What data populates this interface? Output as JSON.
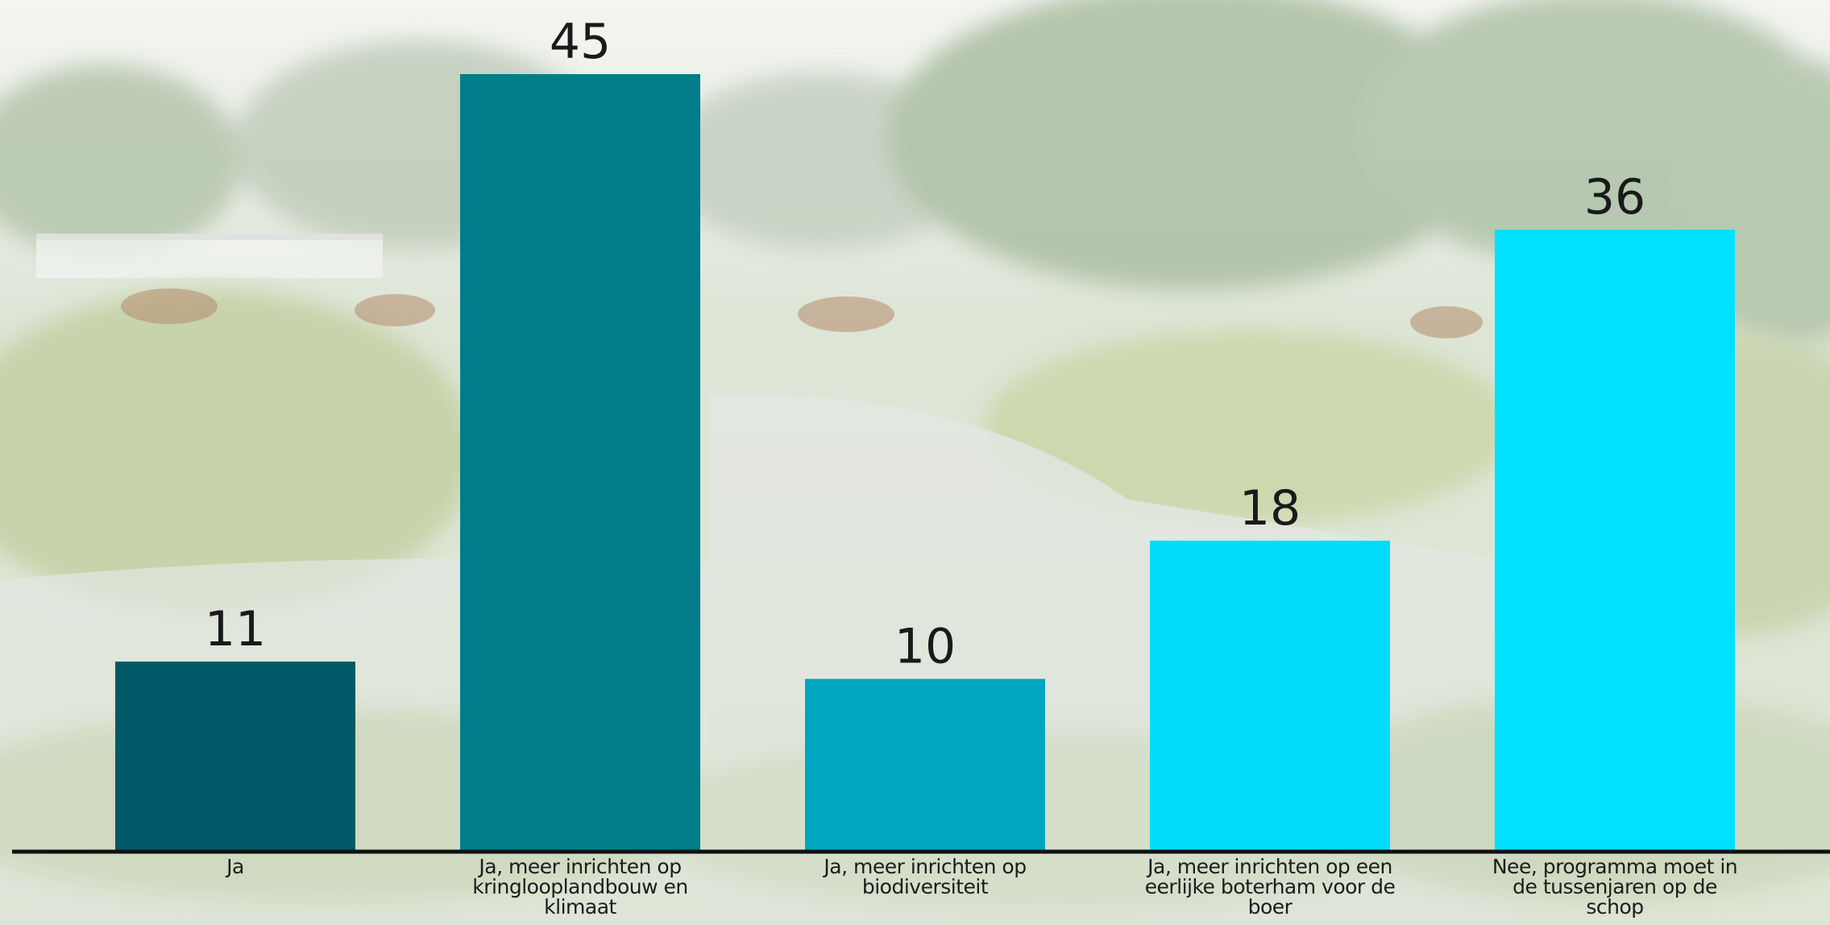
{
  "chart_data": {
    "type": "bar",
    "title": "",
    "xlabel": "",
    "ylabel": "",
    "ylim": [
      0,
      45
    ],
    "grid": false,
    "legend": "none",
    "categories": [
      "Ja",
      "Ja, meer inrichten op kringlooplandbouw en klimaat",
      "Ja, meer inrichten op biodiversiteit",
      "Ja, meer inrichten op een eerlijke boterham voor de boer",
      "Nee, programma moet in de tussenjaren op de schop"
    ],
    "values": [
      11,
      45,
      10,
      18,
      36
    ],
    "bar_colors": [
      "#005a68",
      "#007c8a",
      "#00a5c0",
      "#00ddfa",
      "#00e0ff"
    ],
    "axis_color": "#111111",
    "data_label_color": "#1a1a1a"
  }
}
